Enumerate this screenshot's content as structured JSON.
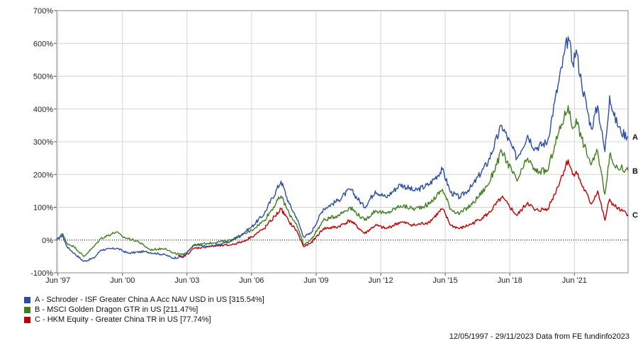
{
  "chart_data": {
    "type": "line",
    "title": "",
    "xlabel": "",
    "ylabel": "",
    "x_range": [
      "1997-05-12",
      "2023-11-29"
    ],
    "ylim": [
      -100,
      700
    ],
    "y_ticks": [
      "-100%",
      "0%",
      "100%",
      "200%",
      "300%",
      "400%",
      "500%",
      "600%",
      "700%"
    ],
    "x_ticks": [
      {
        "label": "Jun '97",
        "date": "1997-06-01"
      },
      {
        "label": "Jun '00",
        "date": "2000-06-01"
      },
      {
        "label": "Jun '03",
        "date": "2003-06-01"
      },
      {
        "label": "Jun '06",
        "date": "2006-06-01"
      },
      {
        "label": "Jun '09",
        "date": "2009-06-01"
      },
      {
        "label": "Jun '12",
        "date": "2012-06-01"
      },
      {
        "label": "Jun '15",
        "date": "2015-06-01"
      },
      {
        "label": "Jun '18",
        "date": "2018-06-01"
      },
      {
        "label": "Jun '21",
        "date": "2021-06-01"
      }
    ],
    "grid": true,
    "zero_line": "dotted",
    "series": [
      {
        "name": "A - Schroder - ISF Greater China A Acc NAV USD in US [315.54%]",
        "end_label": "A",
        "color": "#2b4ea2",
        "points": [
          [
            "1997-05-12",
            0
          ],
          [
            "1997-08-15",
            15
          ],
          [
            "1997-11-01",
            -20
          ],
          [
            "1998-03-01",
            -40
          ],
          [
            "1998-08-15",
            -65
          ],
          [
            "1999-02-01",
            -55
          ],
          [
            "1999-06-01",
            -30
          ],
          [
            "2000-03-01",
            -25
          ],
          [
            "2000-09-01",
            -40
          ],
          [
            "2001-06-01",
            -35
          ],
          [
            "2002-06-01",
            -45
          ],
          [
            "2002-10-01",
            -55
          ],
          [
            "2003-04-01",
            -50
          ],
          [
            "2003-10-01",
            -15
          ],
          [
            "2004-06-01",
            -20
          ],
          [
            "2005-06-01",
            -5
          ],
          [
            "2006-01-01",
            20
          ],
          [
            "2006-06-01",
            40
          ],
          [
            "2007-01-01",
            80
          ],
          [
            "2007-10-15",
            180
          ],
          [
            "2008-03-01",
            110
          ],
          [
            "2008-07-01",
            70
          ],
          [
            "2008-11-01",
            10
          ],
          [
            "2009-03-01",
            20
          ],
          [
            "2009-10-01",
            95
          ],
          [
            "2010-06-01",
            120
          ],
          [
            "2011-01-01",
            155
          ],
          [
            "2011-09-01",
            100
          ],
          [
            "2012-03-01",
            150
          ],
          [
            "2012-09-01",
            130
          ],
          [
            "2013-05-01",
            170
          ],
          [
            "2014-01-01",
            150
          ],
          [
            "2014-09-01",
            170
          ],
          [
            "2015-04-15",
            215
          ],
          [
            "2015-09-01",
            145
          ],
          [
            "2016-02-01",
            130
          ],
          [
            "2016-09-01",
            165
          ],
          [
            "2017-06-01",
            240
          ],
          [
            "2018-01-15",
            350
          ],
          [
            "2018-10-01",
            250
          ],
          [
            "2019-04-01",
            320
          ],
          [
            "2019-08-01",
            280
          ],
          [
            "2020-03-01",
            300
          ],
          [
            "2020-07-01",
            420
          ],
          [
            "2021-02-15",
            620
          ],
          [
            "2021-05-01",
            540
          ],
          [
            "2021-07-01",
            580
          ],
          [
            "2021-10-01",
            480
          ],
          [
            "2022-03-15",
            340
          ],
          [
            "2022-07-01",
            410
          ],
          [
            "2022-10-31",
            270
          ],
          [
            "2023-01-20",
            440
          ],
          [
            "2023-04-01",
            380
          ],
          [
            "2023-07-31",
            330
          ],
          [
            "2023-11-29",
            315.54
          ]
        ]
      },
      {
        "name": "B - MSCI Golden Dragon GTR in US [211.47%]",
        "end_label": "B",
        "color": "#3f7f1e",
        "points": [
          [
            "1997-05-12",
            0
          ],
          [
            "1997-08-15",
            20
          ],
          [
            "1997-11-01",
            -10
          ],
          [
            "1998-03-01",
            -20
          ],
          [
            "1998-08-15",
            -50
          ],
          [
            "1999-02-01",
            -20
          ],
          [
            "1999-06-01",
            5
          ],
          [
            "2000-02-15",
            25
          ],
          [
            "2000-06-01",
            10
          ],
          [
            "2001-03-01",
            -5
          ],
          [
            "2001-09-15",
            -30
          ],
          [
            "2002-06-01",
            -25
          ],
          [
            "2002-10-01",
            -40
          ],
          [
            "2003-04-01",
            -45
          ],
          [
            "2003-10-01",
            -15
          ],
          [
            "2004-06-01",
            -10
          ],
          [
            "2005-06-01",
            0
          ],
          [
            "2006-01-01",
            15
          ],
          [
            "2006-06-01",
            30
          ],
          [
            "2007-01-01",
            60
          ],
          [
            "2007-10-15",
            135
          ],
          [
            "2008-03-01",
            80
          ],
          [
            "2008-07-01",
            50
          ],
          [
            "2008-11-01",
            -15
          ],
          [
            "2009-03-01",
            0
          ],
          [
            "2009-10-01",
            60
          ],
          [
            "2010-06-01",
            75
          ],
          [
            "2011-01-01",
            100
          ],
          [
            "2011-09-01",
            60
          ],
          [
            "2012-03-01",
            90
          ],
          [
            "2012-09-01",
            80
          ],
          [
            "2013-05-01",
            105
          ],
          [
            "2014-01-01",
            95
          ],
          [
            "2014-09-01",
            110
          ],
          [
            "2015-04-15",
            155
          ],
          [
            "2015-09-01",
            95
          ],
          [
            "2016-02-01",
            80
          ],
          [
            "2016-09-01",
            110
          ],
          [
            "2017-06-01",
            170
          ],
          [
            "2018-01-15",
            270
          ],
          [
            "2018-10-01",
            180
          ],
          [
            "2019-04-01",
            250
          ],
          [
            "2019-08-01",
            210
          ],
          [
            "2020-03-01",
            210
          ],
          [
            "2020-07-01",
            290
          ],
          [
            "2021-02-15",
            410
          ],
          [
            "2021-05-01",
            340
          ],
          [
            "2021-07-01",
            370
          ],
          [
            "2021-10-01",
            310
          ],
          [
            "2022-03-15",
            230
          ],
          [
            "2022-07-01",
            270
          ],
          [
            "2022-10-31",
            140
          ],
          [
            "2023-01-20",
            260
          ],
          [
            "2023-04-01",
            230
          ],
          [
            "2023-07-31",
            220
          ],
          [
            "2023-11-29",
            211.47
          ]
        ]
      },
      {
        "name": "C - HKM Equity - Greater China TR in US [77.74%]",
        "end_label": "C",
        "color": "#c00000",
        "points": [
          [
            "2003-01-01",
            -48
          ],
          [
            "2003-04-01",
            -52
          ],
          [
            "2003-10-01",
            -25
          ],
          [
            "2004-06-01",
            -20
          ],
          [
            "2005-06-01",
            -15
          ],
          [
            "2006-01-01",
            -5
          ],
          [
            "2006-06-01",
            10
          ],
          [
            "2007-01-01",
            35
          ],
          [
            "2007-10-15",
            95
          ],
          [
            "2008-03-01",
            55
          ],
          [
            "2008-07-01",
            30
          ],
          [
            "2008-11-01",
            -20
          ],
          [
            "2009-03-01",
            -10
          ],
          [
            "2009-10-01",
            35
          ],
          [
            "2010-06-01",
            40
          ],
          [
            "2011-01-01",
            60
          ],
          [
            "2011-09-01",
            20
          ],
          [
            "2012-03-01",
            45
          ],
          [
            "2012-09-01",
            35
          ],
          [
            "2013-05-01",
            55
          ],
          [
            "2014-01-01",
            45
          ],
          [
            "2014-09-01",
            55
          ],
          [
            "2015-04-15",
            95
          ],
          [
            "2015-09-01",
            45
          ],
          [
            "2016-02-01",
            35
          ],
          [
            "2016-09-01",
            50
          ],
          [
            "2017-06-01",
            80
          ],
          [
            "2018-01-15",
            130
          ],
          [
            "2018-10-01",
            75
          ],
          [
            "2019-04-01",
            115
          ],
          [
            "2019-08-01",
            90
          ],
          [
            "2020-03-01",
            95
          ],
          [
            "2020-07-01",
            140
          ],
          [
            "2021-02-15",
            245
          ],
          [
            "2021-05-01",
            200
          ],
          [
            "2021-07-01",
            210
          ],
          [
            "2021-10-01",
            170
          ],
          [
            "2022-03-15",
            110
          ],
          [
            "2022-07-01",
            150
          ],
          [
            "2022-10-31",
            60
          ],
          [
            "2023-01-20",
            125
          ],
          [
            "2023-04-01",
            105
          ],
          [
            "2023-07-31",
            90
          ],
          [
            "2023-11-29",
            77.74
          ]
        ]
      }
    ]
  },
  "legend": {
    "items": [
      {
        "text": "A - Schroder - ISF Greater China A Acc NAV USD in US [315.54%]",
        "color": "#2b4ea2"
      },
      {
        "text": "B - MSCI Golden Dragon GTR in US [211.47%]",
        "color": "#3f7f1e"
      },
      {
        "text": "C - HKM Equity - Greater China TR in US [77.74%]",
        "color": "#c00000"
      }
    ]
  },
  "footer": {
    "text": "12/05/1997 - 29/11/2023 Data from FE fundinfo2023"
  }
}
